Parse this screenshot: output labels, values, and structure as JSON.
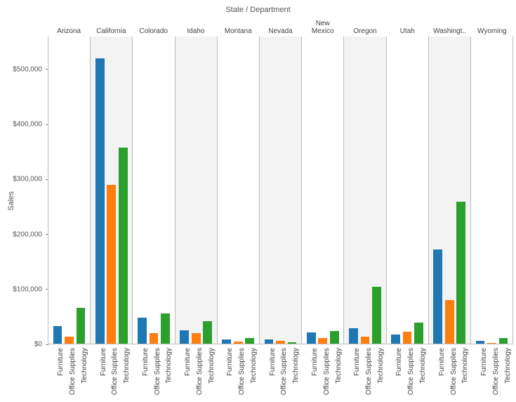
{
  "title": "State  /  Department",
  "ylabel": "Sales",
  "ylim": [
    0,
    560000
  ],
  "yticks": [
    {
      "value": 0,
      "label": "$0"
    },
    {
      "value": 100000,
      "label": "$100,000"
    },
    {
      "value": 200000,
      "label": "$200,000"
    },
    {
      "value": 300000,
      "label": "$300,000"
    },
    {
      "value": 400000,
      "label": "$400,000"
    },
    {
      "value": 500000,
      "label": "$500,000"
    }
  ],
  "departments": [
    "Furniture",
    "Office Supplies",
    "Technology"
  ],
  "series_colors": {
    "Furniture": "#1f77b4",
    "Office Supplies": "#ff7f0e",
    "Technology": "#2ca02c"
  },
  "states": [
    {
      "name": "Arizona",
      "values": [
        33000,
        13500,
        66000
      ]
    },
    {
      "name": "California",
      "values": [
        520000,
        290000,
        358000
      ]
    },
    {
      "name": "Colorado",
      "values": [
        48000,
        20000,
        56000
      ]
    },
    {
      "name": "Idaho",
      "values": [
        26000,
        20000,
        42000
      ]
    },
    {
      "name": "Montana",
      "values": [
        9000,
        5000,
        12000
      ]
    },
    {
      "name": "Nevada",
      "values": [
        9000,
        6000,
        4000
      ]
    },
    {
      "name": "New\nMexico",
      "values": [
        22000,
        12000,
        24000
      ]
    },
    {
      "name": "Oregon",
      "values": [
        30000,
        14000,
        105000
      ]
    },
    {
      "name": "Utah",
      "values": [
        18000,
        23000,
        40000
      ]
    },
    {
      "name": "Washingt..",
      "values": [
        172000,
        80000,
        260000
      ]
    },
    {
      "name": "Wyoming",
      "values": [
        6000,
        2500,
        12000
      ]
    }
  ],
  "panel_alt_bg": "#f3f3f3",
  "background_color": "#ffffff",
  "axis_color": "#bbbbbb",
  "text_color": "#555555",
  "title_fontsize": 11,
  "label_fontsize": 10
}
